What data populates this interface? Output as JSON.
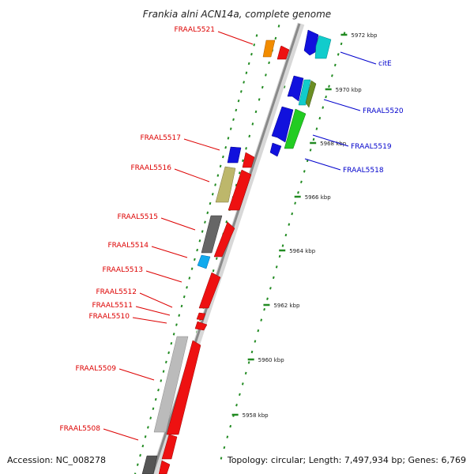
{
  "header": {
    "title": "Frankia alni ACN14a, complete genome"
  },
  "footer": {
    "accession": "Accession: NC_008278",
    "summary": "Topology: circular; Length: 7,497,934 bp; Genes: 6,769"
  },
  "colors": {
    "left_labels": "#dd0000",
    "right_labels": "#0000cc",
    "axis_dots": "#228b22",
    "backbone": "#8a8a8a"
  },
  "axis": {
    "unit": "kbp",
    "ticks": [
      {
        "kbp": 5972,
        "label": "5972 kbp"
      },
      {
        "kbp": 5970,
        "label": "5970 kbp"
      },
      {
        "kbp": 5968,
        "label": "5968 kbp"
      },
      {
        "kbp": 5966,
        "label": "5966 kbp"
      },
      {
        "kbp": 5964,
        "label": "5964 kbp"
      },
      {
        "kbp": 5962,
        "label": "5962 kbp"
      },
      {
        "kbp": 5960,
        "label": "5960 kbp"
      },
      {
        "kbp": 5958,
        "label": "5958 kbp"
      }
    ]
  },
  "left_labels": [
    "FRAAL5521",
    "FRAAL5517",
    "FRAAL5516",
    "FRAAL5515",
    "FRAAL5514",
    "FRAAL5513",
    "FRAAL5512",
    "FRAAL5511",
    "FRAAL5510",
    "FRAAL5509",
    "FRAAL5508"
  ],
  "right_labels": [
    "citE",
    "FRAAL5520",
    "FRAAL5519",
    "FRAAL5518"
  ]
}
